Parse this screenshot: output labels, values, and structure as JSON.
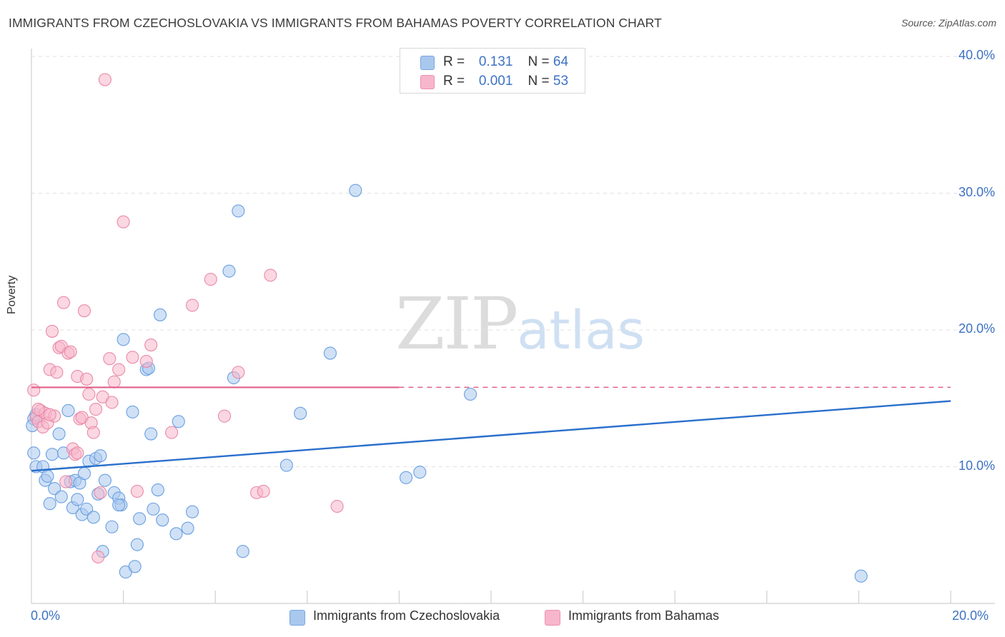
{
  "header": {
    "title": "IMMIGRANTS FROM CZECHOSLOVAKIA VS IMMIGRANTS FROM BAHAMAS POVERTY CORRELATION CHART",
    "source": "Source: ZipAtlas.com"
  },
  "watermark": {
    "zip": "ZIP",
    "atlas": "atlas"
  },
  "legend": {
    "rows": [
      {
        "r_label": "R =",
        "r_value": "0.131",
        "n_label": "N =",
        "n_value": "64",
        "color": "#a9c8ee"
      },
      {
        "r_label": "R =",
        "r_value": "0.001",
        "n_label": "N =",
        "n_value": "53",
        "color": "#f7b6cb"
      }
    ]
  },
  "bottom_legend": [
    {
      "label": "Immigrants from Czechoslovakia",
      "color": "#a9c8ee"
    },
    {
      "label": "Immigrants from Bahamas",
      "color": "#f7b6cb"
    }
  ],
  "chart_data": {
    "type": "scatter",
    "title": "IMMIGRANTS FROM CZECHOSLOVAKIA VS IMMIGRANTS FROM BAHAMAS POVERTY CORRELATION CHART",
    "xlabel": "",
    "ylabel": "Poverty",
    "xlim": [
      0,
      20
    ],
    "ylim": [
      0,
      40
    ],
    "x_tick_labels": [
      "0.0%",
      "20.0%"
    ],
    "y_ticks": [
      10,
      20,
      30,
      40
    ],
    "y_tick_labels": [
      "10.0%",
      "20.0%",
      "30.0%",
      "40.0%"
    ],
    "grid": true,
    "series": [
      {
        "name": "Immigrants from Czechoslovakia",
        "color": "#6a9fe0",
        "fill": "#a9c8ee",
        "trend": {
          "x": [
            0,
            20
          ],
          "y": [
            9.7,
            14.8
          ],
          "style": "solid",
          "color": "#2a6fcc"
        },
        "points": [
          [
            0.05,
            13.5
          ],
          [
            0.05,
            11.0
          ],
          [
            0.1,
            10.0
          ],
          [
            0.25,
            10.0
          ],
          [
            0.3,
            9.0
          ],
          [
            0.35,
            9.3
          ],
          [
            0.4,
            7.3
          ],
          [
            0.45,
            10.9
          ],
          [
            0.5,
            8.4
          ],
          [
            0.6,
            12.4
          ],
          [
            0.65,
            7.8
          ],
          [
            0.7,
            11.0
          ],
          [
            0.8,
            14.1
          ],
          [
            0.85,
            8.9
          ],
          [
            0.9,
            7.0
          ],
          [
            0.95,
            9.0
          ],
          [
            1.0,
            7.6
          ],
          [
            1.05,
            8.8
          ],
          [
            1.1,
            6.5
          ],
          [
            1.15,
            9.5
          ],
          [
            1.2,
            6.9
          ],
          [
            1.25,
            10.4
          ],
          [
            1.35,
            6.3
          ],
          [
            1.4,
            10.6
          ],
          [
            1.45,
            8.0
          ],
          [
            1.5,
            10.8
          ],
          [
            1.55,
            3.8
          ],
          [
            1.6,
            9.0
          ],
          [
            1.75,
            5.6
          ],
          [
            1.8,
            8.1
          ],
          [
            1.9,
            7.7
          ],
          [
            1.95,
            7.2
          ],
          [
            2.0,
            19.3
          ],
          [
            2.05,
            2.3
          ],
          [
            2.2,
            14.0
          ],
          [
            2.25,
            2.7
          ],
          [
            2.3,
            4.3
          ],
          [
            2.35,
            6.2
          ],
          [
            2.5,
            17.1
          ],
          [
            2.55,
            17.2
          ],
          [
            2.6,
            12.4
          ],
          [
            2.65,
            6.9
          ],
          [
            2.75,
            8.3
          ],
          [
            2.8,
            21.1
          ],
          [
            2.85,
            6.1
          ],
          [
            3.15,
            5.1
          ],
          [
            3.2,
            13.3
          ],
          [
            3.4,
            5.5
          ],
          [
            3.5,
            6.7
          ],
          [
            4.3,
            24.3
          ],
          [
            4.4,
            16.5
          ],
          [
            4.5,
            28.7
          ],
          [
            4.6,
            3.8
          ],
          [
            5.55,
            10.1
          ],
          [
            5.85,
            13.9
          ],
          [
            6.5,
            18.3
          ],
          [
            7.05,
            30.2
          ],
          [
            8.15,
            9.2
          ],
          [
            8.45,
            9.6
          ],
          [
            9.55,
            15.3
          ],
          [
            18.05,
            2.0
          ],
          [
            0.02,
            13.0
          ],
          [
            0.1,
            13.8
          ],
          [
            1.9,
            7.2
          ]
        ]
      },
      {
        "name": "Immigrants from Bahamas",
        "color": "#e98aa8",
        "fill": "#f7b6cb",
        "trend": {
          "x": [
            0,
            20
          ],
          "y": [
            15.8,
            15.8
          ],
          "solid_until": 8.0,
          "style": "solid-then-dashed",
          "color": "#e0608a"
        },
        "points": [
          [
            0.05,
            15.6
          ],
          [
            0.1,
            13.6
          ],
          [
            0.15,
            13.3
          ],
          [
            0.2,
            14.1
          ],
          [
            0.25,
            12.9
          ],
          [
            0.3,
            13.9
          ],
          [
            0.35,
            13.2
          ],
          [
            0.4,
            17.1
          ],
          [
            0.45,
            19.9
          ],
          [
            0.5,
            13.7
          ],
          [
            0.55,
            16.9
          ],
          [
            0.6,
            18.7
          ],
          [
            0.65,
            18.8
          ],
          [
            0.7,
            22.0
          ],
          [
            0.75,
            8.9
          ],
          [
            0.8,
            18.3
          ],
          [
            0.85,
            18.4
          ],
          [
            0.9,
            11.3
          ],
          [
            0.95,
            10.9
          ],
          [
            1.0,
            16.6
          ],
          [
            1.05,
            13.5
          ],
          [
            1.1,
            13.6
          ],
          [
            1.15,
            21.4
          ],
          [
            1.2,
            16.4
          ],
          [
            1.25,
            15.3
          ],
          [
            1.3,
            13.2
          ],
          [
            1.35,
            12.5
          ],
          [
            1.4,
            14.2
          ],
          [
            1.45,
            3.4
          ],
          [
            1.5,
            8.1
          ],
          [
            1.55,
            15.1
          ],
          [
            1.6,
            38.3
          ],
          [
            1.7,
            17.9
          ],
          [
            1.75,
            14.7
          ],
          [
            1.8,
            16.2
          ],
          [
            1.9,
            17.1
          ],
          [
            2.0,
            27.9
          ],
          [
            2.2,
            18.0
          ],
          [
            2.3,
            8.2
          ],
          [
            2.5,
            17.7
          ],
          [
            2.6,
            18.9
          ],
          [
            3.05,
            12.5
          ],
          [
            3.5,
            21.8
          ],
          [
            3.9,
            23.7
          ],
          [
            4.2,
            13.7
          ],
          [
            4.5,
            16.9
          ],
          [
            4.9,
            8.1
          ],
          [
            5.05,
            8.2
          ],
          [
            5.2,
            24.0
          ],
          [
            6.65,
            7.1
          ],
          [
            0.15,
            14.2
          ],
          [
            1.0,
            11.0
          ],
          [
            0.4,
            13.8
          ]
        ]
      }
    ]
  }
}
